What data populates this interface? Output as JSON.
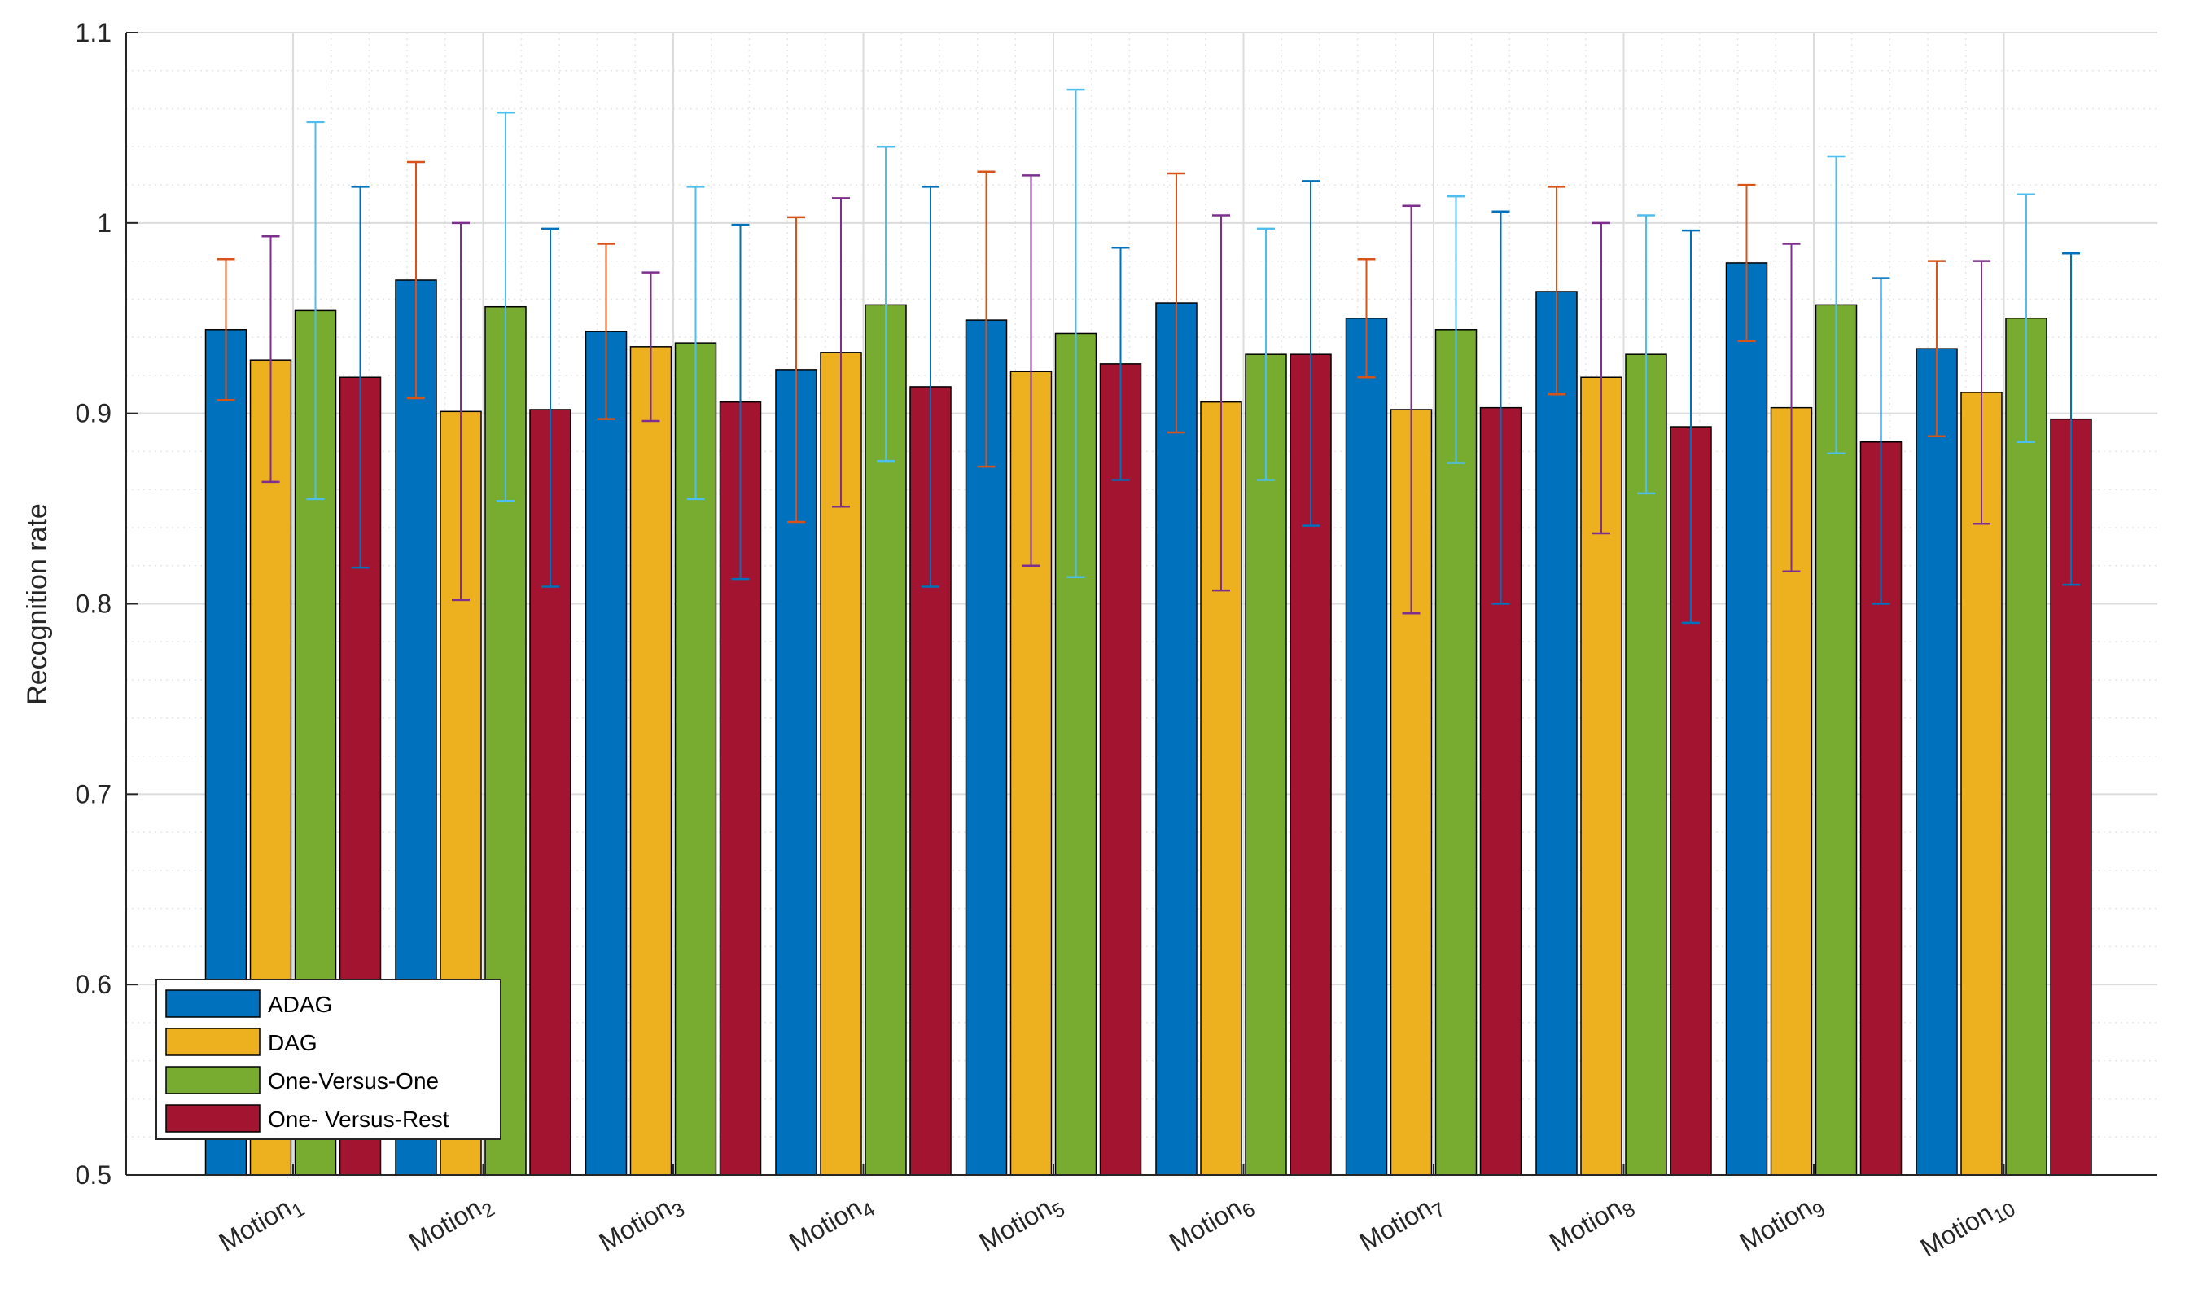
{
  "chart_data": {
    "type": "bar",
    "title": "",
    "xlabel": "",
    "ylabel": "Recognition rate",
    "ylim": [
      0.5,
      1.1
    ],
    "yticks": [
      "0.5",
      "0.6",
      "0.7",
      "0.8",
      "0.9",
      "1",
      "1.1"
    ],
    "grid": true,
    "legend_position": "bottom-left",
    "categories": [
      {
        "base": "Motion",
        "sub": "1"
      },
      {
        "base": "Motion",
        "sub": "2"
      },
      {
        "base": "Motion",
        "sub": "3"
      },
      {
        "base": "Motion",
        "sub": "4"
      },
      {
        "base": "Motion",
        "sub": "5"
      },
      {
        "base": "Motion",
        "sub": "6"
      },
      {
        "base": "Motion",
        "sub": "7"
      },
      {
        "base": "Motion",
        "sub": "8"
      },
      {
        "base": "Motion",
        "sub": "9"
      },
      {
        "base": "Motion",
        "sub": "10"
      }
    ],
    "series": [
      {
        "name": "ADAG",
        "color": "#0072BD",
        "error_color": "#D95319",
        "values": [
          0.944,
          0.97,
          0.943,
          0.923,
          0.949,
          0.958,
          0.95,
          0.964,
          0.979,
          0.934
        ],
        "err_low": [
          0.907,
          0.908,
          0.897,
          0.843,
          0.872,
          0.89,
          0.919,
          0.91,
          0.938,
          0.888
        ],
        "err_high": [
          0.981,
          1.032,
          0.989,
          1.003,
          1.027,
          1.026,
          0.981,
          1.019,
          1.02,
          0.98
        ]
      },
      {
        "name": "DAG",
        "color": "#EDB120",
        "error_color": "#7E2F8E",
        "values": [
          0.928,
          0.901,
          0.935,
          0.932,
          0.922,
          0.906,
          0.902,
          0.919,
          0.903,
          0.911
        ],
        "err_low": [
          0.864,
          0.802,
          0.896,
          0.851,
          0.82,
          0.807,
          0.795,
          0.837,
          0.817,
          0.842
        ],
        "err_high": [
          0.993,
          1.0,
          0.974,
          1.013,
          1.025,
          1.004,
          1.009,
          1.0,
          0.989,
          0.98
        ]
      },
      {
        "name": "One-Versus-One",
        "color": "#77AC30",
        "error_color": "#4DBEEE",
        "values": [
          0.954,
          0.956,
          0.937,
          0.957,
          0.942,
          0.931,
          0.944,
          0.931,
          0.957,
          0.95
        ],
        "err_low": [
          0.855,
          0.854,
          0.855,
          0.875,
          0.814,
          0.865,
          0.874,
          0.858,
          0.879,
          0.885
        ],
        "err_high": [
          1.053,
          1.058,
          1.019,
          1.04,
          1.07,
          0.997,
          1.014,
          1.004,
          1.035,
          1.015
        ]
      },
      {
        "name": "One- Versus-Rest",
        "color": "#A2142F",
        "error_color": "#0072BD",
        "values": [
          0.919,
          0.902,
          0.906,
          0.914,
          0.926,
          0.931,
          0.903,
          0.893,
          0.885,
          0.897
        ],
        "err_low": [
          0.819,
          0.809,
          0.813,
          0.809,
          0.865,
          0.841,
          0.8,
          0.79,
          0.8,
          0.81
        ],
        "err_high": [
          1.019,
          0.997,
          0.999,
          1.019,
          0.987,
          1.022,
          1.006,
          0.996,
          0.971,
          0.984
        ]
      }
    ]
  }
}
